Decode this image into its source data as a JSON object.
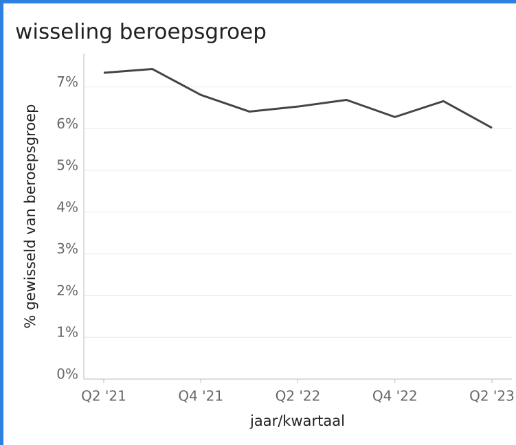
{
  "chart_data": {
    "type": "line",
    "title": "wisseling beroepsgroep",
    "x_label": "jaar/kwartaal",
    "y_label": "% gewisseld van beroepsgroep",
    "categories": [
      "Q2 '21",
      null,
      "Q4 '21",
      null,
      "Q2 '22",
      null,
      "Q4 '22",
      null,
      "Q2 '23"
    ],
    "series": [
      {
        "name": "wisseling",
        "color": "#444444",
        "values": [
          7.34,
          7.43,
          6.81,
          6.41,
          6.53,
          6.69,
          6.28,
          6.66,
          6.02
        ]
      }
    ],
    "ylim": [
      0,
      7.8
    ],
    "yticks": [
      {
        "value": 0,
        "label": "0%"
      },
      {
        "value": 1,
        "label": "1%"
      },
      {
        "value": 2,
        "label": "2%"
      },
      {
        "value": 3,
        "label": "3%"
      },
      {
        "value": 4,
        "label": "4%"
      },
      {
        "value": 5,
        "label": "5%"
      },
      {
        "value": 6,
        "label": "6%"
      },
      {
        "value": 7,
        "label": "7%"
      }
    ],
    "grid": true
  }
}
